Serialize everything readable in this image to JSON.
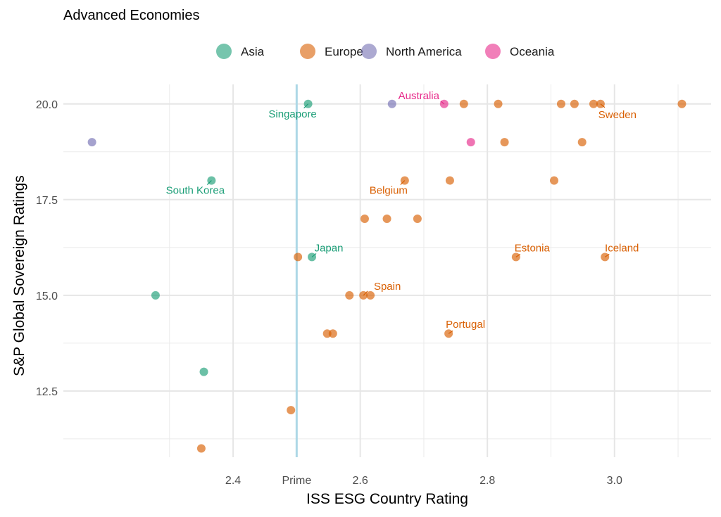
{
  "chart_data": {
    "type": "scatter",
    "title": "Advanced Economies",
    "xlabel": "ISS ESG Country Rating",
    "ylabel": "S&P Global Sovereign Ratings",
    "xlim": [
      2.133,
      3.152
    ],
    "ylim": [
      10.77,
      20.51
    ],
    "grid": true,
    "legend_position": "top",
    "x_ticks": [
      {
        "value": 2.4,
        "label": "2.4"
      },
      {
        "value": 2.5,
        "label": "Prime"
      },
      {
        "value": 2.6,
        "label": "2.6"
      },
      {
        "value": 2.8,
        "label": "2.8"
      },
      {
        "value": 3.0,
        "label": "3.0"
      }
    ],
    "y_ticks": [
      {
        "value": 20.0,
        "label": "20.0"
      },
      {
        "value": 17.5,
        "label": "17.5"
      },
      {
        "value": 15.0,
        "label": "15.0"
      },
      {
        "value": 12.5,
        "label": "12.5"
      }
    ],
    "reference_line": {
      "value": 2.5,
      "label": "Prime",
      "color": "#add8e6"
    },
    "series": [
      {
        "name": "Asia",
        "color": "#1b9e77",
        "points": [
          {
            "x": 2.518,
            "y": 20,
            "label": "Singapore"
          },
          {
            "x": 2.366,
            "y": 18,
            "label": "South Korea"
          },
          {
            "x": 2.524,
            "y": 16,
            "label": "Japan"
          },
          {
            "x": 2.278,
            "y": 15
          },
          {
            "x": 2.354,
            "y": 13
          }
        ]
      },
      {
        "name": "Europe",
        "color": "#d95f02",
        "points": [
          {
            "x": 2.763,
            "y": 20
          },
          {
            "x": 2.817,
            "y": 20
          },
          {
            "x": 2.916,
            "y": 20
          },
          {
            "x": 2.937,
            "y": 20
          },
          {
            "x": 2.967,
            "y": 20
          },
          {
            "x": 2.978,
            "y": 20,
            "label": "Sweden"
          },
          {
            "x": 3.106,
            "y": 20
          },
          {
            "x": 2.827,
            "y": 19
          },
          {
            "x": 2.949,
            "y": 19
          },
          {
            "x": 2.67,
            "y": 18,
            "label": "Belgium"
          },
          {
            "x": 2.741,
            "y": 18
          },
          {
            "x": 2.905,
            "y": 18
          },
          {
            "x": 2.607,
            "y": 17
          },
          {
            "x": 2.642,
            "y": 17
          },
          {
            "x": 2.69,
            "y": 17
          },
          {
            "x": 2.502,
            "y": 16
          },
          {
            "x": 2.845,
            "y": 16,
            "label": "Estonia"
          },
          {
            "x": 2.985,
            "y": 16,
            "label": "Iceland"
          },
          {
            "x": 2.583,
            "y": 15
          },
          {
            "x": 2.605,
            "y": 15,
            "label": "Spain"
          },
          {
            "x": 2.616,
            "y": 15
          },
          {
            "x": 2.548,
            "y": 14
          },
          {
            "x": 2.557,
            "y": 14
          },
          {
            "x": 2.739,
            "y": 14,
            "label": "Portugal"
          },
          {
            "x": 2.491,
            "y": 12
          },
          {
            "x": 2.35,
            "y": 11
          }
        ]
      },
      {
        "name": "North America",
        "color": "#7570b3",
        "points": [
          {
            "x": 2.178,
            "y": 19
          },
          {
            "x": 2.65,
            "y": 20
          }
        ]
      },
      {
        "name": "Oceania",
        "color": "#e7298a",
        "points": [
          {
            "x": 2.732,
            "y": 20,
            "label": "Australia"
          },
          {
            "x": 2.774,
            "y": 19
          }
        ]
      }
    ]
  }
}
